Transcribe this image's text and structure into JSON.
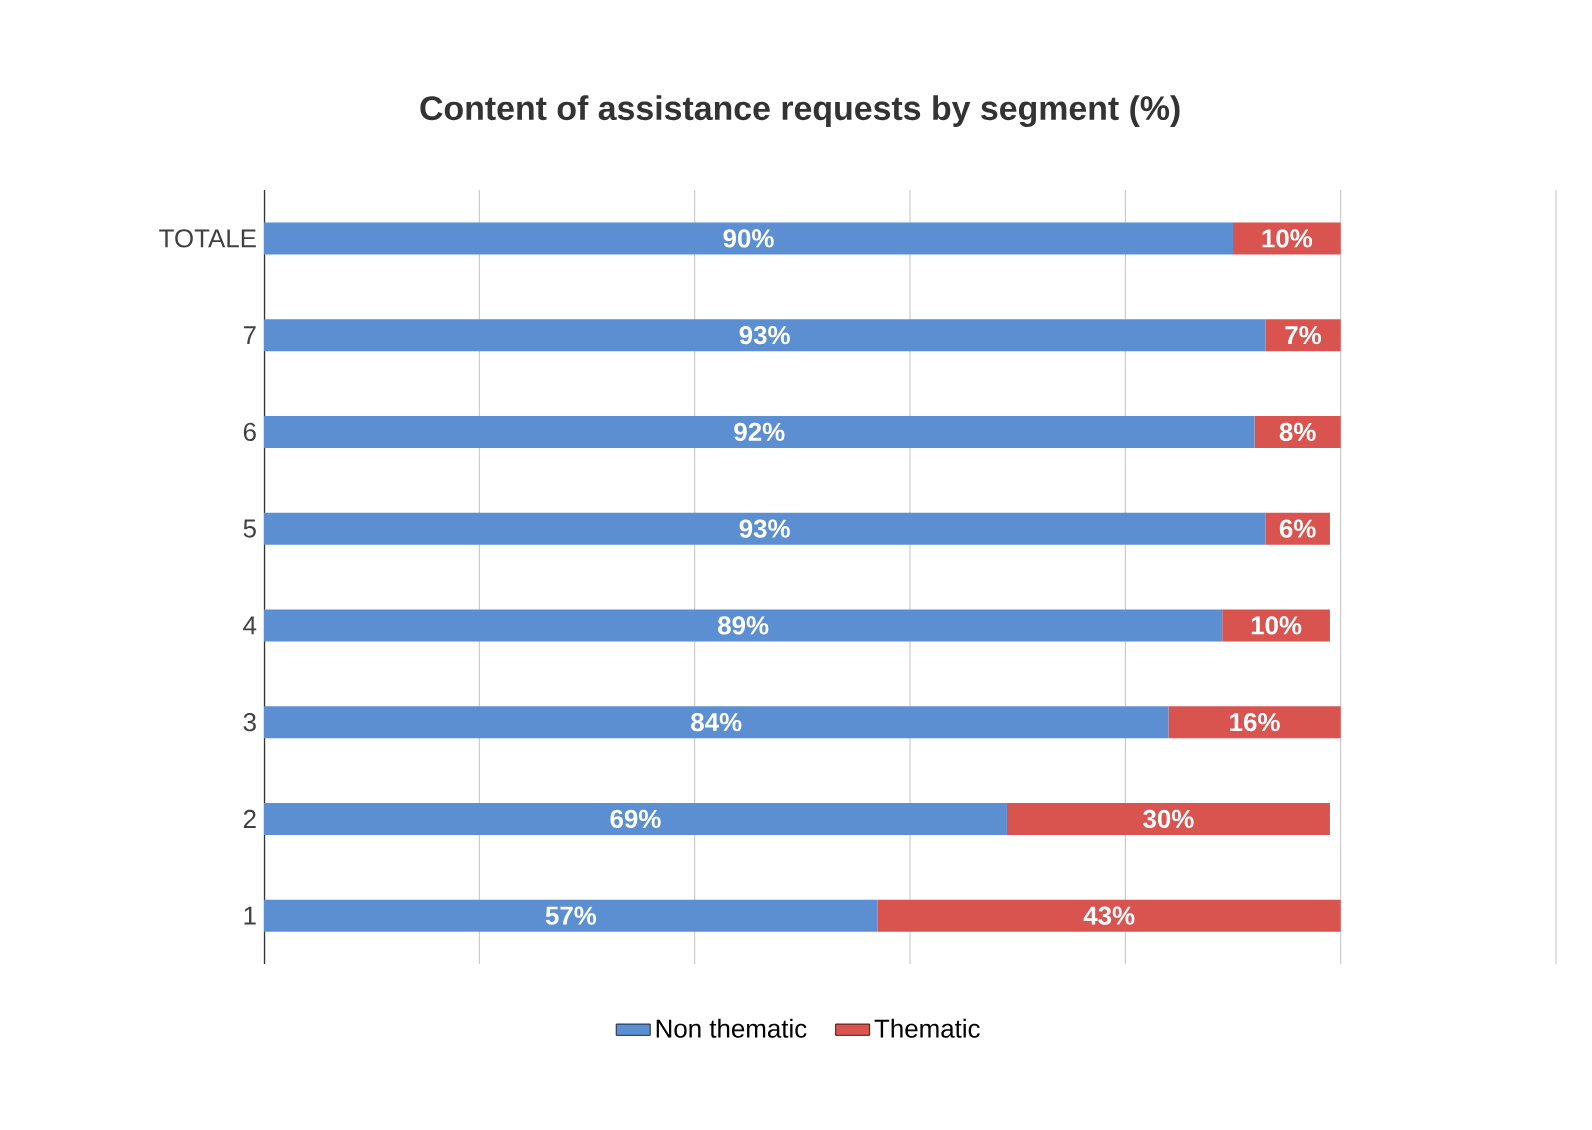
{
  "chart_data": {
    "type": "bar",
    "orientation": "horizontal",
    "stacked": true,
    "title": "Content of assistance requests by segment (%)",
    "categories": [
      "TOTALE",
      "7",
      "6",
      "5",
      "4",
      "3",
      "2",
      "1"
    ],
    "series": [
      {
        "name": "Non thematic",
        "color": "#5b8fd1",
        "values": [
          90,
          93,
          92,
          93,
          89,
          84,
          69,
          57
        ],
        "value_labels": [
          "90%",
          "93%",
          "92%",
          "93%",
          "89%",
          "84%",
          "69%",
          "57%"
        ]
      },
      {
        "name": "Thematic",
        "color": "#d9534f",
        "values": [
          10,
          7,
          8,
          6,
          10,
          16,
          30,
          43
        ],
        "value_labels": [
          "10%",
          "7%",
          "8%",
          "6%",
          "10%",
          "16%",
          "30%",
          "43%"
        ]
      }
    ],
    "xlim": [
      0,
      120
    ],
    "xticks": [
      {
        "value": 0,
        "label": null
      },
      {
        "value": 20,
        "label": null
      },
      {
        "value": 40,
        "label": null
      },
      {
        "value": 60,
        "label": null
      },
      {
        "value": 80,
        "label": null
      },
      {
        "value": 100,
        "label": null
      },
      {
        "value": 120,
        "label": null
      }
    ],
    "tick_labels": "y",
    "grid": "x",
    "legend": "bottom"
  }
}
